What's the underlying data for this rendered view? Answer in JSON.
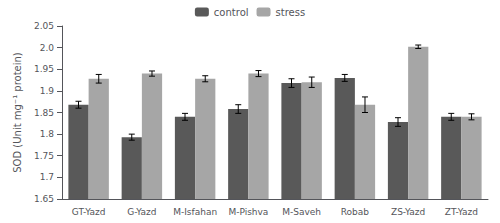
{
  "chart_data": {
    "type": "bar",
    "ylabel": "SOD (Unit mg⁻¹ protein)",
    "categories": [
      "GT-Yazd",
      "G-Yazd",
      "M-Isfahan",
      "M-Pishva",
      "M-Saveh",
      "Robab",
      "ZS-Yazd",
      "ZT-Yazd"
    ],
    "series": [
      {
        "name": "control",
        "color": "#595959",
        "values": [
          1.868,
          1.793,
          1.84,
          1.858,
          1.918,
          1.93,
          1.828,
          1.84
        ],
        "errors": [
          0.008,
          0.007,
          0.008,
          0.01,
          0.01,
          0.008,
          0.01,
          0.008
        ]
      },
      {
        "name": "stress",
        "color": "#a6a6a6",
        "values": [
          1.928,
          1.94,
          1.928,
          1.94,
          1.92,
          1.868,
          2.002,
          1.84
        ],
        "errors": [
          0.01,
          0.006,
          0.007,
          0.007,
          0.012,
          0.018,
          0.004,
          0.007
        ]
      }
    ],
    "ylim": [
      1.65,
      2.05
    ],
    "yticks": [
      1.65,
      1.7,
      1.75,
      1.8,
      1.85,
      1.9,
      1.95,
      {
        "value": 2.0,
        "label": "2.0"
      },
      2.05
    ],
    "grid": false,
    "legend": "upper center"
  }
}
